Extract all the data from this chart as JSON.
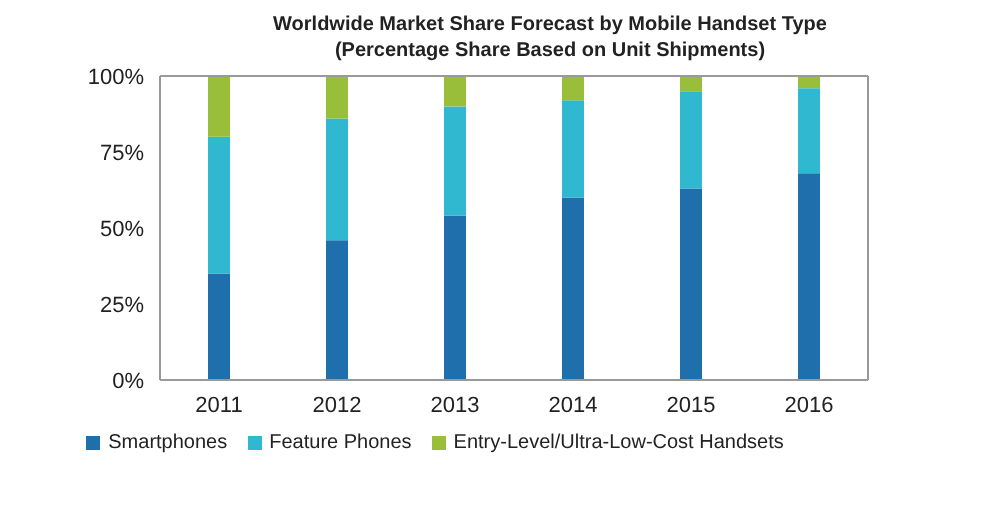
{
  "chart_data": {
    "type": "bar",
    "title": "Worldwide Market Share Forecast by Mobile Handset Type",
    "subtitle": "(Percentage Share Based on Unit Shipments)",
    "categories": [
      "2011",
      "2012",
      "2013",
      "2014",
      "2015",
      "2016"
    ],
    "series": [
      {
        "name": "Smartphones",
        "color": "#1f6fad",
        "values": [
          35,
          46,
          54,
          60,
          63,
          68
        ]
      },
      {
        "name": "Feature Phones",
        "color": "#2fb8d0",
        "values": [
          45,
          40,
          36,
          32,
          32,
          28
        ]
      },
      {
        "name": "Entry-Level/Ultra-Low-Cost Handsets",
        "color": "#99bf3a",
        "values": [
          20,
          14,
          10,
          8,
          5,
          4
        ]
      }
    ],
    "stacked": true,
    "ylim": [
      0,
      100
    ],
    "yticks": [
      {
        "value": 0,
        "label": "0%"
      },
      {
        "value": 25,
        "label": "25%"
      },
      {
        "value": 50,
        "label": "50%"
      },
      {
        "value": 75,
        "label": "75%"
      },
      {
        "value": 100,
        "label": "100%"
      }
    ],
    "grid": false,
    "legend": "bottom"
  }
}
